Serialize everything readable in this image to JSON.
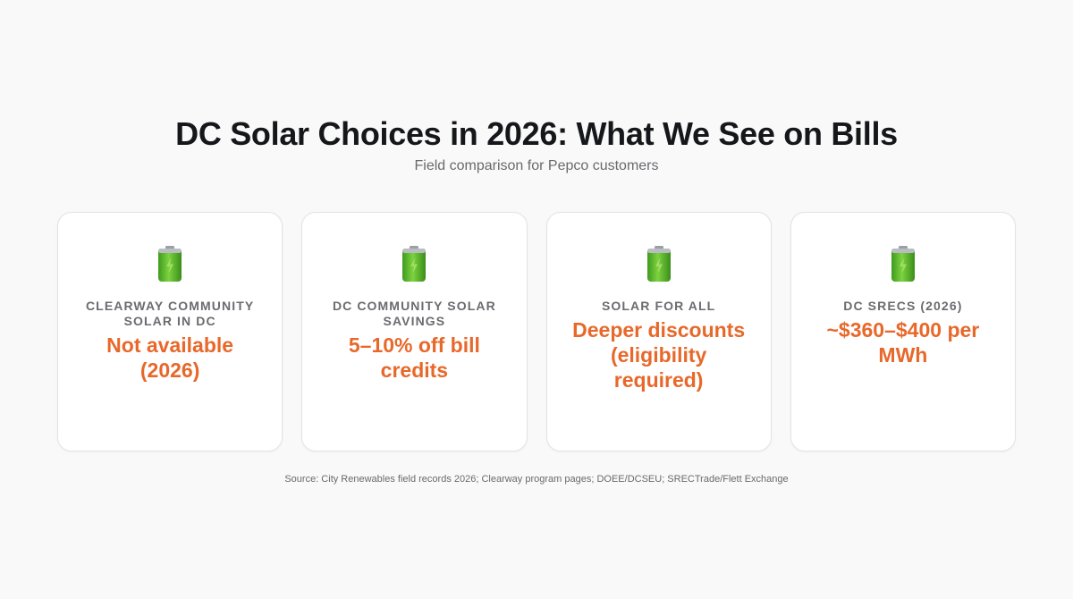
{
  "header": {
    "title": "DC Solar Choices in 2026: What We See on Bills",
    "subtitle": "Field comparison for Pepco customers"
  },
  "cards": [
    {
      "icon": "battery-icon",
      "label": "CLEARWAY COMMUNITY SOLAR IN DC",
      "value": "Not available (2026)"
    },
    {
      "icon": "battery-icon",
      "label": "DC COMMUNITY SOLAR SAVINGS",
      "value": "5–10% off bill credits"
    },
    {
      "icon": "battery-icon",
      "label": "SOLAR FOR ALL",
      "value": "Deeper discounts (eligibility required)"
    },
    {
      "icon": "battery-icon",
      "label": "DC SRECS (2026)",
      "value": "~$360–$400 per MWh"
    }
  ],
  "colors": {
    "accent": "#e8682a",
    "background": "#f9f9f9",
    "card": "#ffffff",
    "battery": "#5cb82c"
  },
  "footer": {
    "source": "Source: City Renewables field records 2026; Clearway program pages; DOEE/DCSEU; SRECTrade/Flett Exchange"
  }
}
